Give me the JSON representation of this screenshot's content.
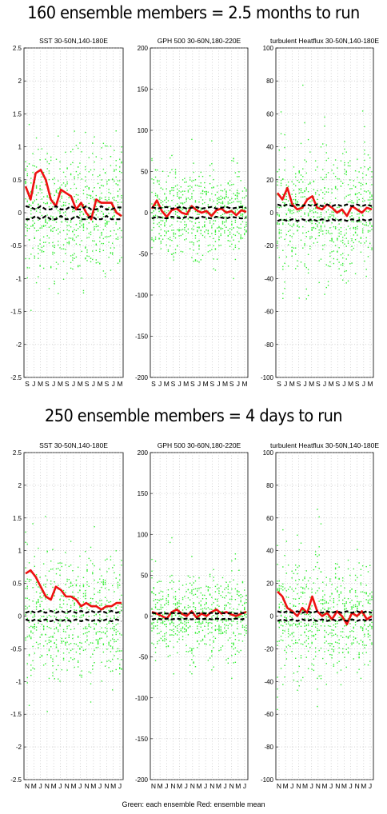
{
  "headings": {
    "top": "160 ensemble members = 2.5 months to run",
    "bottom": "250 ensemble members = 4 days to run"
  },
  "footer": "Green: each ensemble  Red: ensemble mean",
  "colors": {
    "ensemble": "#33ee33",
    "mean": "#ee1111",
    "bounds": "#000000"
  },
  "chart_data": [
    {
      "type": "scatter",
      "title": "SST 30-50N,140-180E",
      "panel_group": "160 ensemble members",
      "ylim": [
        -2.5,
        2.5
      ],
      "yticks": [
        -2.5,
        -2,
        -1.5,
        -1,
        -0.5,
        0,
        0.5,
        1,
        1.5,
        2,
        2.5
      ],
      "xtick_labels": [
        "S",
        "J",
        "M",
        "S",
        "J",
        "M",
        "S",
        "J",
        "M",
        "S",
        "J",
        "M",
        "S",
        "J",
        "M"
      ],
      "grid": true,
      "series": [
        {
          "style": "points",
          "color": "green",
          "spread_by_tick": [
            1.5,
            1.3,
            1.1,
            1.0,
            1.2,
            1.1,
            1.0,
            1.2,
            1.2,
            1.1,
            1.2,
            1.2,
            1.1,
            1.2,
            1.2
          ]
        },
        {
          "style": "line",
          "color": "red",
          "values": [
            0.4,
            0.2,
            0.6,
            0.65,
            0.5,
            0.2,
            0.1,
            0.35,
            0.3,
            0.25,
            0.05,
            0.15,
            0.0,
            -0.1,
            0.2,
            0.15,
            0.15,
            0.15,
            0.0,
            -0.05
          ]
        },
        {
          "style": "dashed",
          "color": "black",
          "values": [
            0.1,
            0.08,
            0.05,
            0.1,
            0.05,
            0.05,
            0.1,
            0.05,
            0.05,
            0.1,
            0.05,
            0.05,
            0.1,
            0.05,
            0.05,
            0.1,
            0.05,
            0.05,
            0.08,
            0.08
          ]
        },
        {
          "style": "dashed",
          "color": "black",
          "values": [
            -0.1,
            -0.1,
            -0.05,
            -0.1,
            -0.05,
            -0.1,
            -0.1,
            -0.05,
            -0.1,
            -0.1,
            -0.05,
            -0.1,
            -0.1,
            -0.05,
            -0.1,
            -0.1,
            -0.05,
            -0.1,
            -0.1,
            -0.1
          ]
        }
      ]
    },
    {
      "type": "scatter",
      "title": "GPH 500 30-60N,180-220E",
      "panel_group": "160 ensemble members",
      "ylim": [
        -200,
        200
      ],
      "yticks": [
        -200,
        -150,
        -100,
        -50,
        0,
        50,
        100,
        150,
        200
      ],
      "xtick_labels": [
        "S",
        "J",
        "M",
        "S",
        "J",
        "M",
        "S",
        "J",
        "M",
        "S",
        "J",
        "M",
        "S",
        "J",
        "M"
      ],
      "grid": true,
      "series": [
        {
          "style": "points",
          "color": "green",
          "spread_by_tick": [
            100,
            60,
            40,
            100,
            60,
            40,
            100,
            60,
            40,
            100,
            60,
            40,
            100,
            60,
            40
          ]
        },
        {
          "style": "line",
          "color": "red",
          "values": [
            5,
            15,
            2,
            -5,
            3,
            5,
            0,
            -2,
            8,
            3,
            0,
            2,
            -4,
            3,
            5,
            0,
            2,
            -3,
            3,
            1
          ]
        },
        {
          "style": "dashed",
          "color": "black",
          "values": [
            7,
            5,
            6,
            7,
            5,
            6,
            7,
            5,
            6,
            7,
            5,
            6,
            7,
            5,
            6,
            7,
            5,
            6,
            7,
            6
          ]
        },
        {
          "style": "dashed",
          "color": "black",
          "values": [
            -7,
            -5,
            -6,
            -7,
            -5,
            -6,
            -7,
            -5,
            -6,
            -7,
            -5,
            -6,
            -7,
            -5,
            -6,
            -7,
            -5,
            -6,
            -7,
            -6
          ]
        }
      ]
    },
    {
      "type": "scatter",
      "title": "turbulent Heatflux 30-50N,140-180E",
      "panel_group": "160 ensemble members",
      "ylim": [
        -100,
        100
      ],
      "yticks": [
        -100,
        -80,
        -60,
        -40,
        -20,
        0,
        20,
        40,
        60,
        80,
        100
      ],
      "xtick_labels": [
        "S",
        "J",
        "M",
        "S",
        "J",
        "M",
        "S",
        "J",
        "M",
        "S",
        "J",
        "M",
        "S",
        "J",
        "M"
      ],
      "grid": true,
      "series": [
        {
          "style": "points",
          "color": "green",
          "spread_by_tick": [
            40,
            70,
            30,
            40,
            70,
            30,
            40,
            70,
            30,
            40,
            70,
            30,
            40,
            70,
            30
          ]
        },
        {
          "style": "line",
          "color": "red",
          "values": [
            12,
            8,
            15,
            5,
            2,
            3,
            8,
            10,
            3,
            2,
            5,
            3,
            0,
            2,
            -2,
            4,
            2,
            0,
            3,
            2
          ]
        },
        {
          "style": "dashed",
          "color": "black",
          "values": [
            5,
            4,
            5,
            4,
            5,
            4,
            5,
            4,
            5,
            4,
            5,
            4,
            5,
            4,
            5,
            4,
            5,
            4,
            5,
            4
          ]
        },
        {
          "style": "dashed",
          "color": "black",
          "values": [
            -5,
            -4,
            -5,
            -4,
            -5,
            -4,
            -5,
            -4,
            -5,
            -4,
            -5,
            -4,
            -5,
            -4,
            -5,
            -4,
            -5,
            -4,
            -5,
            -4
          ]
        }
      ]
    },
    {
      "type": "scatter",
      "title": "SST 30-50N,140-180E",
      "panel_group": "250 ensemble members",
      "ylim": [
        -2.5,
        2.5
      ],
      "yticks": [
        -2.5,
        -2,
        -1.5,
        -1,
        -0.5,
        0,
        0.5,
        1,
        1.5,
        2,
        2.5
      ],
      "xtick_labels": [
        "N",
        "M",
        "J",
        "N",
        "M",
        "J",
        "N",
        "M",
        "J",
        "N",
        "M",
        "J",
        "N",
        "M",
        "J"
      ],
      "grid": true,
      "series": [
        {
          "style": "points",
          "color": "green",
          "spread_by_tick": [
            1.4,
            1.2,
            1.1,
            1.3,
            1.2,
            1.1,
            1.3,
            1.2,
            1.1,
            1.3,
            1.2,
            1.1,
            1.3,
            1.2,
            1.1
          ]
        },
        {
          "style": "line",
          "color": "red",
          "values": [
            0.65,
            0.7,
            0.6,
            0.45,
            0.3,
            0.25,
            0.45,
            0.4,
            0.3,
            0.3,
            0.25,
            0.15,
            0.2,
            0.15,
            0.15,
            0.1,
            0.15,
            0.15,
            0.2,
            0.2
          ]
        },
        {
          "style": "dashed",
          "color": "black",
          "values": [
            0.05,
            0.08,
            0.05,
            0.08,
            0.05,
            0.08,
            0.05,
            0.08,
            0.05,
            0.08,
            0.05,
            0.08,
            0.05,
            0.08,
            0.05,
            0.08,
            0.05,
            0.08,
            0.05,
            0.08
          ]
        },
        {
          "style": "dashed",
          "color": "black",
          "values": [
            -0.05,
            -0.08,
            -0.05,
            -0.08,
            -0.05,
            -0.08,
            -0.05,
            -0.08,
            -0.05,
            -0.08,
            -0.05,
            -0.08,
            -0.05,
            -0.08,
            -0.05,
            -0.08,
            -0.05,
            -0.08,
            -0.05,
            -0.08
          ]
        }
      ]
    },
    {
      "type": "scatter",
      "title": "GPH 500 30-60N,180-220E",
      "panel_group": "250 ensemble members",
      "ylim": [
        -200,
        200
      ],
      "yticks": [
        -200,
        -150,
        -100,
        -50,
        0,
        50,
        100,
        150,
        200
      ],
      "xtick_labels": [
        "N",
        "M",
        "J",
        "N",
        "M",
        "J",
        "N",
        "M",
        "J",
        "N",
        "M",
        "J",
        "N",
        "M",
        "J"
      ],
      "grid": true,
      "series": [
        {
          "style": "points",
          "color": "green",
          "spread_by_tick": [
            100,
            50,
            40,
            100,
            50,
            40,
            100,
            50,
            40,
            100,
            50,
            40,
            100,
            50,
            40
          ]
        },
        {
          "style": "line",
          "color": "red",
          "values": [
            5,
            3,
            0,
            -3,
            5,
            8,
            3,
            0,
            6,
            -2,
            3,
            0,
            5,
            8,
            3,
            5,
            2,
            0,
            3,
            5
          ]
        },
        {
          "style": "dashed",
          "color": "black",
          "values": [
            4,
            3,
            4,
            3,
            4,
            3,
            4,
            3,
            4,
            3,
            4,
            3,
            4,
            3,
            4,
            3,
            4,
            3,
            4,
            3
          ]
        },
        {
          "style": "dashed",
          "color": "black",
          "values": [
            -4,
            -3,
            -4,
            -3,
            -4,
            -3,
            -4,
            -3,
            -4,
            -3,
            -4,
            -3,
            -4,
            -3,
            -4,
            -3,
            -4,
            -3,
            -4,
            -3
          ]
        }
      ]
    },
    {
      "type": "scatter",
      "title": "turbulent Heatflux 30-50N,140-180E",
      "panel_group": "250 ensemble members",
      "ylim": [
        -100,
        100
      ],
      "yticks": [
        -100,
        -80,
        -60,
        -40,
        -20,
        0,
        20,
        40,
        60,
        80,
        100
      ],
      "xtick_labels": [
        "N",
        "M",
        "J",
        "N",
        "M",
        "J",
        "N",
        "M",
        "J",
        "N",
        "M",
        "J",
        "N",
        "M",
        "J"
      ],
      "grid": true,
      "series": [
        {
          "style": "points",
          "color": "green",
          "spread_by_tick": [
            60,
            40,
            30,
            60,
            40,
            30,
            60,
            40,
            30,
            60,
            40,
            30,
            60,
            40,
            30
          ]
        },
        {
          "style": "line",
          "color": "red",
          "values": [
            15,
            12,
            5,
            3,
            0,
            5,
            2,
            12,
            3,
            0,
            2,
            -2,
            3,
            0,
            -5,
            2,
            0,
            3,
            -2,
            0
          ]
        },
        {
          "style": "dashed",
          "color": "black",
          "values": [
            3,
            2,
            3,
            2,
            3,
            2,
            3,
            2,
            3,
            2,
            3,
            2,
            3,
            2,
            3,
            2,
            3,
            2,
            3,
            2
          ]
        },
        {
          "style": "dashed",
          "color": "black",
          "values": [
            -3,
            -2,
            -3,
            -2,
            -3,
            -2,
            -3,
            -2,
            -3,
            -2,
            -3,
            -2,
            -3,
            -2,
            -3,
            -2,
            -3,
            -2,
            -3,
            -2
          ]
        }
      ]
    }
  ]
}
